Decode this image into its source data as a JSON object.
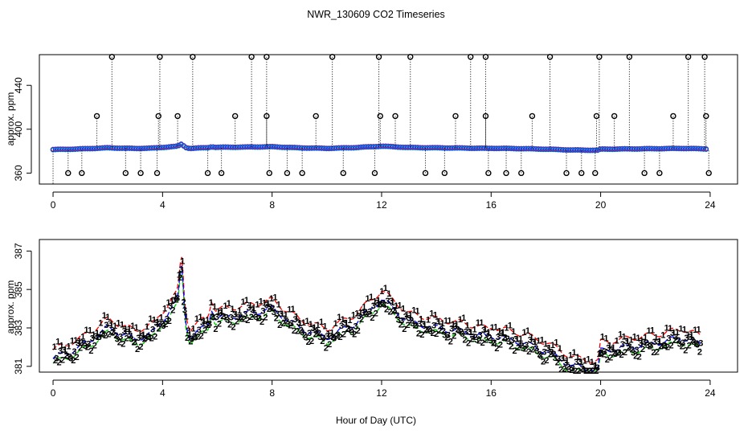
{
  "chart_data": [
    {
      "type": "scatter",
      "title": "NWR_130609  CO2 Timeseries",
      "xlabel": "",
      "ylabel": "approx. ppm",
      "xlim": [
        -0.5,
        25
      ],
      "ylim": [
        350,
        468
      ],
      "x_ticks": [
        "0",
        "4",
        "8",
        "12",
        "16",
        "20",
        "24"
      ],
      "y_ticks": [
        "360",
        "400",
        "440"
      ],
      "baseline": {
        "x": [
          0,
          1,
          2,
          3,
          3.7,
          4.3,
          4.6,
          5,
          6,
          7,
          8,
          9,
          10,
          11,
          12,
          13,
          14,
          15,
          15.9,
          16,
          17,
          18,
          19,
          19.9,
          20,
          21,
          22,
          23,
          23.9
        ],
        "y": [
          381.4,
          382.0,
          383.0,
          382.4,
          382.8,
          384.0,
          384.5,
          382.5,
          383.5,
          383.7,
          384.0,
          383.0,
          382.5,
          383.2,
          384.5,
          383.3,
          383.0,
          382.8,
          382.5,
          382.6,
          382.3,
          381.8,
          381.0,
          380.8,
          381.8,
          382.0,
          382.2,
          382.5,
          382.0
        ],
        "spikes_x": [
          4.7,
          5.8
        ],
        "spikes_y": [
          386.2,
          384.0
        ]
      },
      "outliers_high": [
        2.15,
        3.9,
        5.1,
        7.25,
        7.8,
        10.2,
        11.9,
        13.05,
        15.25,
        15.8,
        18.15,
        19.95,
        21.05,
        23.2,
        23.8
      ],
      "outliers_mid": [
        1.6,
        3.85,
        4.55,
        6.65,
        7.8,
        9.6,
        11.95,
        12.5,
        14.7,
        15.8,
        17.5,
        19.85,
        20.5,
        22.65,
        23.85
      ],
      "outliers_low": [
        0.55,
        1.05,
        2.65,
        3.2,
        3.8,
        5.65,
        6.15,
        7.9,
        8.55,
        9.1,
        10.6,
        11.75,
        13.6,
        14.3,
        15.9,
        16.55,
        17.1,
        18.75,
        19.3,
        19.8,
        21.6,
        22.15,
        23.95
      ],
      "high_value": 466,
      "mid_value": 412,
      "low_value": 360
    },
    {
      "type": "line",
      "title": "",
      "xlabel": "Hour of Day (UTC)",
      "ylabel": "approx. ppm",
      "xlim": [
        -0.5,
        25
      ],
      "ylim": [
        380.7,
        387.6
      ],
      "x_ticks": [
        "0",
        "4",
        "8",
        "12",
        "16",
        "20",
        "24"
      ],
      "y_ticks": [
        "381",
        "383",
        "385",
        "387"
      ],
      "series": [
        {
          "name": "1",
          "color": "#ff0000",
          "offset": 0.45
        },
        {
          "name": "2",
          "color": "#00cc00",
          "offset": -0.25
        },
        {
          "name": "3",
          "color": "#0000ff",
          "offset": 0.0
        }
      ],
      "markers": [
        "1",
        "2",
        "3"
      ]
    }
  ]
}
